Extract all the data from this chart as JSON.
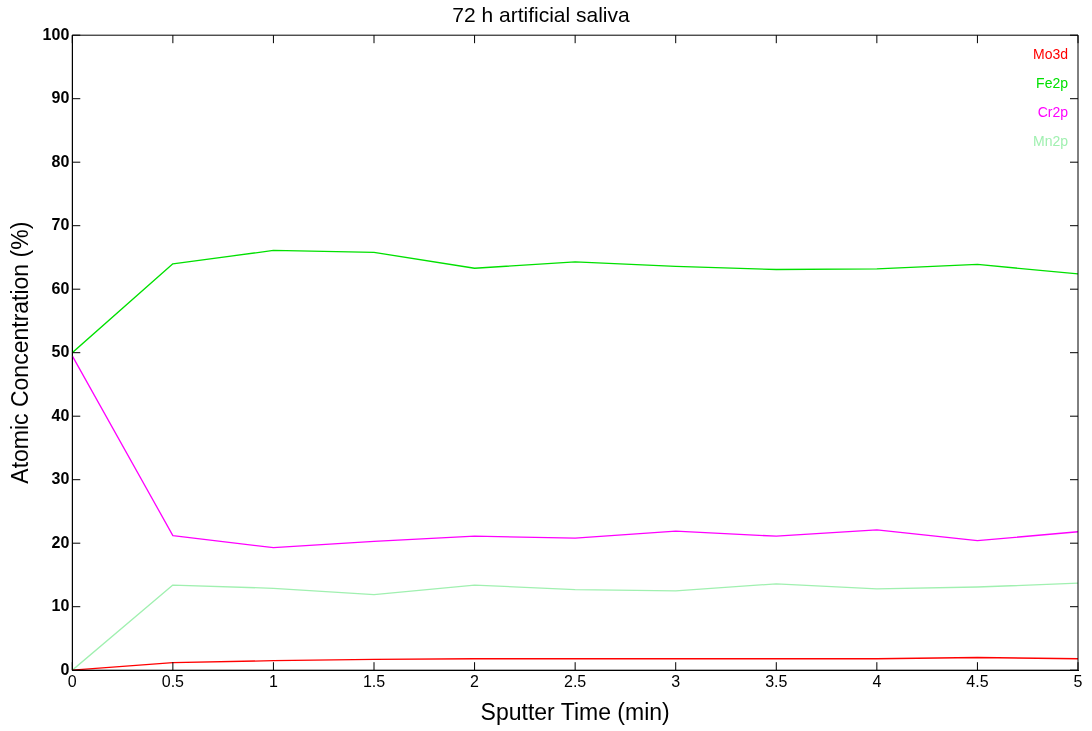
{
  "chart_data": {
    "type": "line",
    "title": "72 h artificial saliva",
    "xlabel": "Sputter Time (min)",
    "ylabel": "Atomic Concentration (%)",
    "x": [
      0,
      0.5,
      1,
      1.5,
      2,
      2.5,
      3,
      3.5,
      4,
      4.5,
      5
    ],
    "series": [
      {
        "name": "Mo3d",
        "color": "#ff0000",
        "values": [
          0,
          1.2,
          1.5,
          1.7,
          1.8,
          1.8,
          1.8,
          1.8,
          1.8,
          2.0,
          1.8
        ]
      },
      {
        "name": "Fe2p",
        "color": "#00e000",
        "values": [
          50,
          64,
          66.1,
          65.8,
          63.3,
          64.3,
          63.6,
          63.1,
          63.2,
          63.9,
          62.4
        ]
      },
      {
        "name": "Cr2p",
        "color": "#ff00ff",
        "values": [
          49.5,
          21.2,
          19.3,
          20.3,
          21.1,
          20.8,
          21.9,
          21.1,
          22.1,
          20.4,
          21.8
        ]
      },
      {
        "name": "Mn2p",
        "color": "#a0f0b0",
        "values": [
          0,
          13.4,
          12.9,
          11.9,
          13.4,
          12.7,
          12.5,
          13.6,
          12.8,
          13.1,
          13.7
        ]
      }
    ],
    "xlim": [
      0,
      5
    ],
    "xticks": [
      0,
      0.5,
      1,
      1.5,
      2,
      2.5,
      3,
      3.5,
      4,
      4.5,
      5
    ],
    "ylim": [
      0,
      100
    ],
    "yticks": [
      0,
      10,
      20,
      30,
      40,
      50,
      60,
      70,
      80,
      90,
      100
    ],
    "legend": "top right",
    "marker": "none",
    "line_style": "solid"
  }
}
